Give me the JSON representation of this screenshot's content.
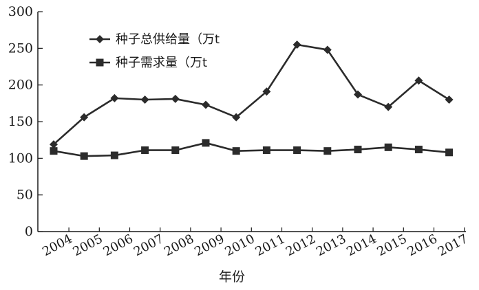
{
  "chart_data": {
    "type": "line",
    "title": "",
    "xlabel": "年份",
    "ylabel": "",
    "categories": [
      "2004",
      "2005",
      "2006",
      "2007",
      "2008",
      "2009",
      "2010",
      "2011",
      "2012",
      "2013",
      "2014",
      "2015",
      "2016",
      "2017"
    ],
    "ylim": [
      0,
      300
    ],
    "yticks": [
      0,
      50,
      100,
      150,
      200,
      250,
      300
    ],
    "grid": false,
    "legend_position": "top-left",
    "series": [
      {
        "name": "种子总供给量（万t",
        "marker": "diamond",
        "color": "#2b2b2b",
        "values": [
          119,
          156,
          182,
          180,
          181,
          173,
          156,
          191,
          255,
          248,
          187,
          170,
          206,
          180
        ]
      },
      {
        "name": "种子需求量（万t",
        "marker": "square",
        "color": "#2b2b2b",
        "values": [
          110,
          103,
          104,
          111,
          111,
          121,
          110,
          111,
          111,
          110,
          112,
          115,
          112,
          108
        ]
      }
    ]
  }
}
